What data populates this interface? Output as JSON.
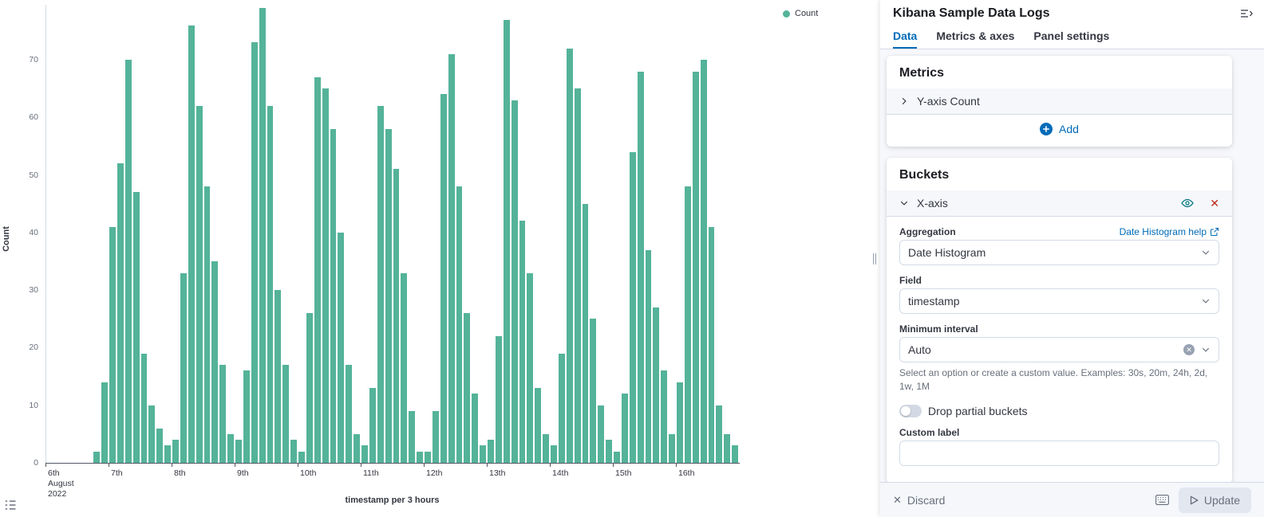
{
  "chart_data": {
    "type": "bar",
    "title": "",
    "xlabel": "timestamp per 3 hours",
    "ylabel": "Count",
    "ylim": [
      0,
      79
    ],
    "yticks": [
      0,
      10,
      20,
      30,
      40,
      50,
      60,
      70
    ],
    "buckets_per_day": 8,
    "grid": false,
    "legend": {
      "position": "top-right",
      "items": [
        {
          "label": "Count",
          "color": "#54B399"
        }
      ]
    },
    "x_ticks": [
      {
        "lines": [
          "6th",
          "August",
          "2022"
        ]
      },
      {
        "lines": [
          "7th"
        ]
      },
      {
        "lines": [
          "8th"
        ]
      },
      {
        "lines": [
          "9th"
        ]
      },
      {
        "lines": [
          "10th"
        ]
      },
      {
        "lines": [
          "11th"
        ]
      },
      {
        "lines": [
          "12th"
        ]
      },
      {
        "lines": [
          "13th"
        ]
      },
      {
        "lines": [
          "14th"
        ]
      },
      {
        "lines": [
          "15th"
        ]
      },
      {
        "lines": [
          "16th"
        ]
      }
    ],
    "series": [
      {
        "name": "Count",
        "color": "#54B399",
        "values": [
          0,
          0,
          0,
          0,
          0,
          0,
          2,
          14,
          41,
          52,
          70,
          47,
          19,
          10,
          6,
          3,
          4,
          33,
          76,
          62,
          48,
          35,
          17,
          5,
          4,
          16,
          73,
          79,
          62,
          30,
          17,
          4,
          2,
          26,
          67,
          65,
          58,
          40,
          17,
          5,
          3,
          13,
          62,
          58,
          51,
          33,
          9,
          2,
          2,
          9,
          64,
          71,
          48,
          26,
          12,
          3,
          4,
          22,
          77,
          63,
          42,
          33,
          13,
          5,
          3,
          19,
          72,
          65,
          45,
          25,
          10,
          4,
          2,
          12,
          54,
          68,
          37,
          27,
          16,
          5,
          14,
          48,
          68,
          70,
          41,
          10,
          5,
          3
        ]
      }
    ]
  },
  "panel": {
    "title": "Kibana Sample Data Logs",
    "tabs": [
      {
        "label": "Data"
      },
      {
        "label": "Metrics & axes"
      },
      {
        "label": "Panel settings"
      }
    ],
    "metrics_section": {
      "heading": "Metrics",
      "y_axis_row": "Y-axis Count",
      "add_label": "Add"
    },
    "buckets_section": {
      "heading": "Buckets",
      "x_axis_row": "X-axis",
      "aggregation_label": "Aggregation",
      "aggregation_help_link": "Date Histogram help",
      "aggregation_value": "Date Histogram",
      "field_label": "Field",
      "field_value": "timestamp",
      "min_interval_label": "Minimum interval",
      "min_interval_value": "Auto",
      "min_interval_help": "Select an option or create a custom value. Examples: 30s, 20m, 24h, 2d, 1w, 1M",
      "drop_partial_label": "Drop partial buckets",
      "drop_partial_on": false,
      "custom_label_label": "Custom label",
      "custom_label_value": ""
    },
    "footer": {
      "discard_label": "Discard",
      "update_label": "Update"
    }
  },
  "colors": {
    "bar": "#54B399",
    "accent": "#006BB8",
    "danger": "#BD271E"
  }
}
